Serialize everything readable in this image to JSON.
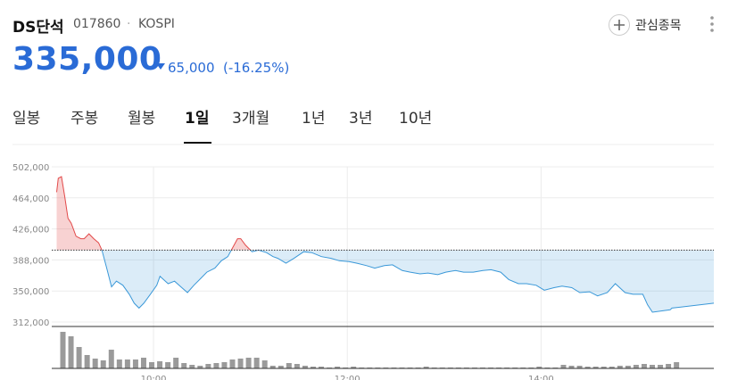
{
  "header": {
    "name": "DS단석",
    "code": "017860",
    "separator": "·",
    "market": "KOSPI",
    "watch": "관심종목"
  },
  "price": {
    "value": "335,000",
    "change": "65,000",
    "change_pct": "(-16.25%)"
  },
  "tabs": [
    "일봉",
    "주봉",
    "월봉",
    "1일",
    "3개월",
    "1년",
    "3년",
    "10년"
  ],
  "active_tab": 3,
  "chart_data": [
    {
      "type": "line",
      "base_value": 400000,
      "up_color": "#e24a4a",
      "down_color": "#3a98d8",
      "xlim": [
        0,
        407
      ],
      "xticks": [
        {
          "value": 60,
          "label": "10:00"
        },
        {
          "value": 180,
          "label": "12:00"
        },
        {
          "value": 300,
          "label": "14:00"
        }
      ],
      "ylim": [
        312000,
        502000
      ],
      "yticks": [
        {
          "value": 312000,
          "label": "312,000"
        },
        {
          "value": 350000,
          "label": "350,000"
        },
        {
          "value": 388000,
          "label": "388,000"
        },
        {
          "value": 426000,
          "label": "426,000"
        },
        {
          "value": 464000,
          "label": "464,000"
        },
        {
          "value": 502000,
          "label": "502,000"
        }
      ],
      "grid": true,
      "x": [
        0,
        1,
        3,
        5,
        7,
        9,
        12,
        15,
        17,
        20,
        23,
        26,
        28,
        31,
        34,
        37,
        41,
        45,
        48,
        51,
        54,
        58,
        62,
        64,
        69,
        73,
        77,
        81,
        85,
        89,
        93,
        98,
        102,
        106,
        109,
        112,
        114,
        117,
        121,
        125,
        130,
        134,
        137,
        142,
        147,
        153,
        158,
        164,
        170,
        175,
        181,
        186,
        192,
        197,
        203,
        208,
        214,
        219,
        225,
        230,
        236,
        241,
        247,
        252,
        258,
        264,
        269,
        275,
        280,
        286,
        291,
        297,
        302,
        308,
        313,
        319,
        324,
        330,
        335,
        341,
        346,
        352,
        357,
        363,
        366,
        369,
        380,
        381,
        407
      ],
      "series": [
        {
          "values": [
            471000,
            488000,
            490000,
            466000,
            439000,
            433000,
            417000,
            414000,
            414000,
            420000,
            414000,
            409000,
            400000,
            378000,
            355000,
            362000,
            357000,
            346000,
            335000,
            329000,
            335000,
            346000,
            357000,
            368000,
            359000,
            362000,
            355000,
            348000,
            357000,
            365000,
            373000,
            378000,
            387000,
            392000,
            403000,
            414000,
            414000,
            406000,
            398000,
            400000,
            397000,
            392000,
            390000,
            384000,
            390000,
            398000,
            397000,
            392000,
            390000,
            387000,
            386000,
            384000,
            381000,
            378000,
            381000,
            382000,
            375000,
            373000,
            371000,
            372000,
            370000,
            373000,
            375000,
            373000,
            373000,
            375000,
            376000,
            373000,
            364000,
            359000,
            359000,
            357000,
            351000,
            354000,
            356000,
            354000,
            348000,
            349000,
            344000,
            348000,
            359000,
            348000,
            346000,
            346000,
            333000,
            324000,
            327000,
            329000,
            335000
          ]
        }
      ]
    },
    {
      "type": "bar",
      "color": "#9a9a9a",
      "ylim": [
        0,
        43
      ],
      "x": [
        0,
        5,
        10,
        15,
        20,
        25,
        30,
        35,
        40,
        45,
        50,
        55,
        60,
        65,
        70,
        75,
        80,
        85,
        90,
        95,
        100,
        105,
        110,
        115,
        120,
        125,
        130,
        135,
        140,
        145,
        150,
        155,
        160,
        165,
        170,
        175,
        180,
        185,
        190,
        195,
        200,
        205,
        210,
        215,
        220,
        225,
        230,
        235,
        240,
        245,
        250,
        255,
        260,
        265,
        270,
        275,
        280,
        285,
        290,
        295,
        300,
        305,
        310,
        315,
        320,
        325,
        330,
        335,
        340,
        345,
        350,
        355,
        360,
        365,
        370,
        375,
        380
      ],
      "values": [
        41,
        36,
        24,
        15,
        11,
        9,
        21,
        10,
        10,
        10,
        12,
        7,
        8,
        7,
        12,
        6,
        4,
        3,
        5,
        6,
        7,
        10,
        11,
        12,
        12,
        9,
        3,
        3,
        6,
        5,
        3,
        2,
        2,
        1,
        2,
        1,
        2,
        1,
        1,
        1,
        1,
        1,
        1,
        1,
        1,
        2,
        1,
        1,
        1,
        1,
        1,
        1,
        1,
        1,
        1,
        1,
        1,
        1,
        1,
        2,
        1,
        1,
        4,
        3,
        3,
        2,
        2,
        2,
        2,
        3,
        3,
        4,
        5,
        4,
        4,
        5,
        7
      ]
    }
  ]
}
